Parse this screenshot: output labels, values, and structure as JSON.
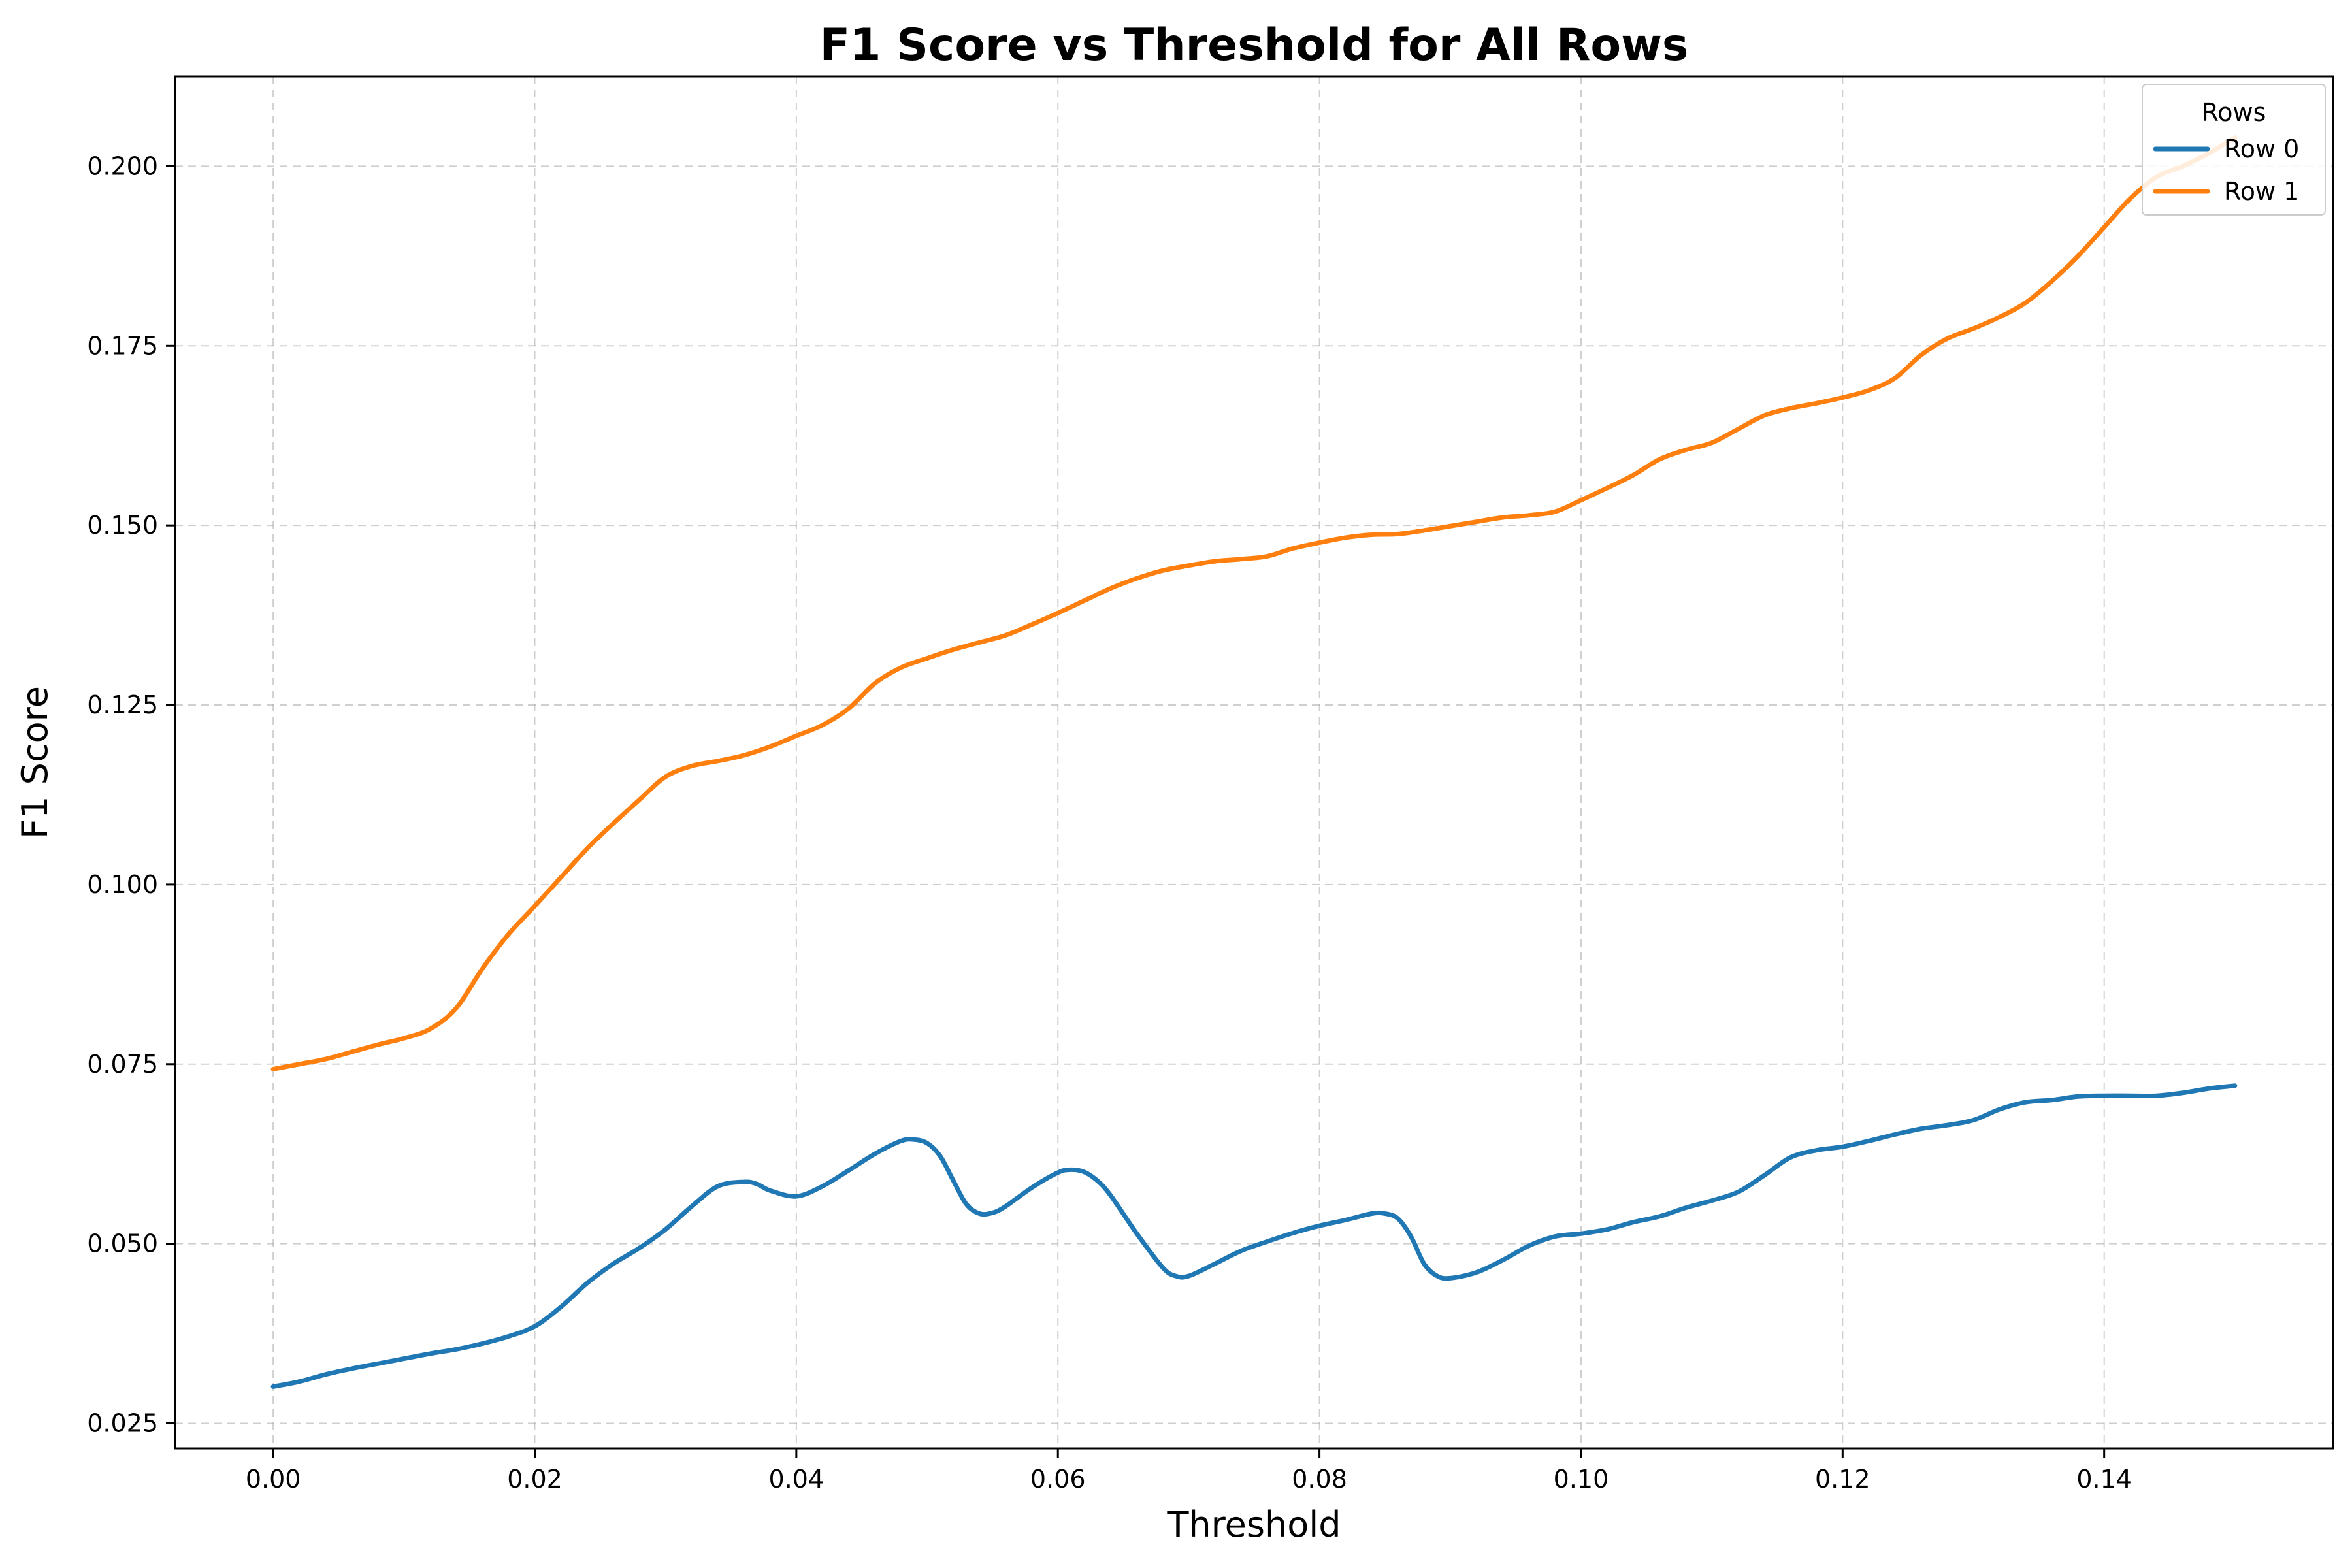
{
  "chart_data": {
    "type": "line",
    "title": "F1 Score vs Threshold for All Rows",
    "xlabel": "Threshold",
    "ylabel": "F1 Score",
    "xlim": [
      -0.0075,
      0.1575
    ],
    "ylim": [
      0.0215,
      0.2125
    ],
    "xticks": [
      0.0,
      0.02,
      0.04,
      0.06,
      0.08,
      0.1,
      0.12,
      0.14
    ],
    "xtick_labels": [
      "0.00",
      "0.02",
      "0.04",
      "0.06",
      "0.08",
      "0.10",
      "0.12",
      "0.14"
    ],
    "yticks": [
      0.025,
      0.05,
      0.075,
      0.1,
      0.125,
      0.15,
      0.175,
      0.2
    ],
    "ytick_labels": [
      "0.025",
      "0.050",
      "0.075",
      "0.100",
      "0.125",
      "0.150",
      "0.175",
      "0.200"
    ],
    "grid": true,
    "legend": {
      "title": "Rows",
      "placement": "top-right"
    },
    "series": [
      {
        "name": "Row 0",
        "color": "#1f77b4",
        "x": [
          0.0,
          0.002,
          0.004,
          0.006,
          0.008,
          0.01,
          0.012,
          0.014,
          0.016,
          0.018,
          0.02,
          0.022,
          0.024,
          0.026,
          0.028,
          0.03,
          0.032,
          0.034,
          0.036,
          0.037,
          0.038,
          0.04,
          0.042,
          0.044,
          0.046,
          0.048,
          0.049,
          0.05,
          0.051,
          0.052,
          0.053,
          0.054,
          0.055,
          0.056,
          0.058,
          0.06,
          0.061,
          0.062,
          0.063,
          0.064,
          0.066,
          0.068,
          0.069,
          0.07,
          0.072,
          0.074,
          0.076,
          0.078,
          0.08,
          0.082,
          0.084,
          0.085,
          0.086,
          0.087,
          0.088,
          0.089,
          0.09,
          0.092,
          0.094,
          0.096,
          0.098,
          0.1,
          0.102,
          0.104,
          0.106,
          0.108,
          0.11,
          0.112,
          0.114,
          0.116,
          0.118,
          0.12,
          0.122,
          0.124,
          0.126,
          0.128,
          0.13,
          0.132,
          0.134,
          0.136,
          0.138,
          0.14,
          0.142,
          0.144,
          0.146,
          0.148,
          0.15
        ],
        "y": [
          0.0301,
          0.0308,
          0.0318,
          0.0326,
          0.0333,
          0.034,
          0.0347,
          0.0353,
          0.0361,
          0.0371,
          0.0385,
          0.0412,
          0.0445,
          0.0472,
          0.0494,
          0.052,
          0.0552,
          0.058,
          0.0586,
          0.0583,
          0.0574,
          0.0566,
          0.058,
          0.0602,
          0.0625,
          0.0643,
          0.0645,
          0.064,
          0.0622,
          0.0588,
          0.0555,
          0.0542,
          0.0543,
          0.0552,
          0.0578,
          0.0599,
          0.0603,
          0.06,
          0.0588,
          0.0568,
          0.0515,
          0.0467,
          0.0455,
          0.0455,
          0.0472,
          0.049,
          0.0503,
          0.0515,
          0.0525,
          0.0533,
          0.0542,
          0.0542,
          0.0535,
          0.051,
          0.0472,
          0.0455,
          0.0452,
          0.046,
          0.0477,
          0.0497,
          0.051,
          0.0514,
          0.052,
          0.053,
          0.0538,
          0.055,
          0.056,
          0.0572,
          0.0595,
          0.062,
          0.063,
          0.0635,
          0.0643,
          0.0652,
          0.066,
          0.0665,
          0.0672,
          0.0687,
          0.0697,
          0.07,
          0.0705,
          0.0706,
          0.0706,
          0.0706,
          0.071,
          0.0716,
          0.072
        ]
      },
      {
        "name": "Row 1",
        "color": "#ff7f0e",
        "x": [
          0.0,
          0.002,
          0.004,
          0.006,
          0.008,
          0.01,
          0.012,
          0.014,
          0.016,
          0.018,
          0.02,
          0.022,
          0.024,
          0.026,
          0.028,
          0.03,
          0.032,
          0.034,
          0.036,
          0.038,
          0.04,
          0.042,
          0.044,
          0.046,
          0.048,
          0.05,
          0.052,
          0.054,
          0.056,
          0.058,
          0.06,
          0.062,
          0.064,
          0.066,
          0.068,
          0.07,
          0.072,
          0.074,
          0.076,
          0.078,
          0.08,
          0.082,
          0.084,
          0.086,
          0.088,
          0.09,
          0.092,
          0.094,
          0.096,
          0.098,
          0.1,
          0.102,
          0.104,
          0.106,
          0.108,
          0.11,
          0.112,
          0.114,
          0.116,
          0.118,
          0.12,
          0.122,
          0.124,
          0.126,
          0.128,
          0.13,
          0.132,
          0.134,
          0.136,
          0.138,
          0.14,
          0.142,
          0.144,
          0.146,
          0.148,
          0.15
        ],
        "y": [
          0.0743,
          0.075,
          0.0757,
          0.0767,
          0.0777,
          0.0786,
          0.0799,
          0.0828,
          0.0883,
          0.0931,
          0.097,
          0.101,
          0.105,
          0.1085,
          0.1118,
          0.115,
          0.1165,
          0.1172,
          0.118,
          0.1192,
          0.1207,
          0.1222,
          0.1245,
          0.128,
          0.1302,
          0.1315,
          0.1327,
          0.1337,
          0.1347,
          0.1362,
          0.1378,
          0.1395,
          0.1412,
          0.1426,
          0.1437,
          0.1444,
          0.145,
          0.1453,
          0.1457,
          0.1468,
          0.1476,
          0.1483,
          0.1487,
          0.1488,
          0.1493,
          0.1499,
          0.1505,
          0.1511,
          0.1514,
          0.1519,
          0.1535,
          0.1552,
          0.157,
          0.1592,
          0.1605,
          0.1615,
          0.1634,
          0.1653,
          0.1663,
          0.167,
          0.1678,
          0.1688,
          0.1705,
          0.1737,
          0.176,
          0.1774,
          0.179,
          0.181,
          0.184,
          0.1875,
          0.1915,
          0.1955,
          0.1985,
          0.2,
          0.2018,
          0.204
        ]
      }
    ]
  }
}
